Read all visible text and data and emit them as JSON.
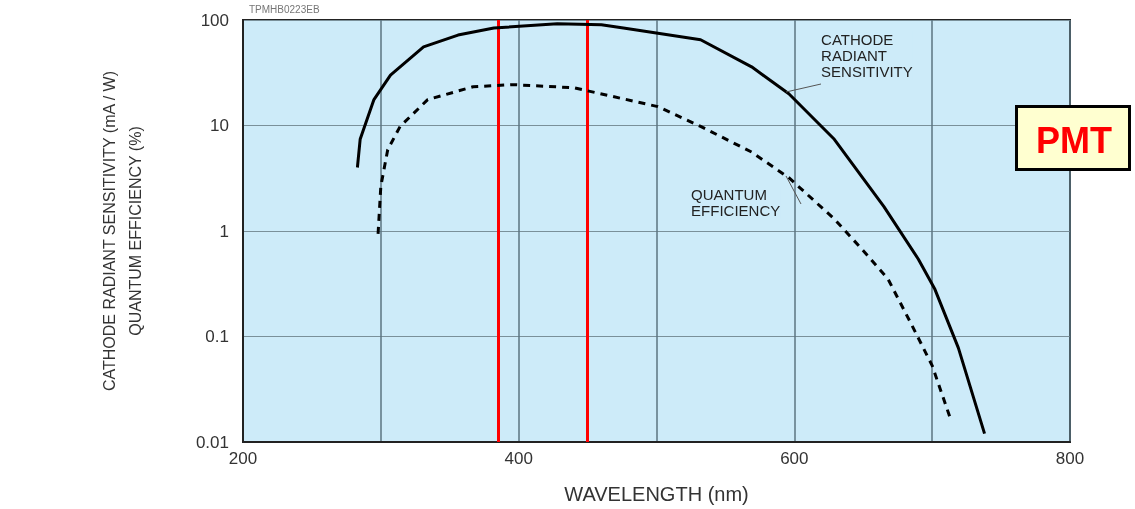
{
  "chart_data": {
    "type": "line",
    "xlabel": "WAVELENGTH (nm)",
    "ylabel": "CATHODE RADIANT SENSITIVITY (mA / W)\nQUANTUM EFFICIENCY (%)",
    "xlim": [
      200,
      800
    ],
    "xticks": [
      200,
      {
        "value": 300,
        "label": null
      },
      400,
      {
        "value": 500,
        "label": null
      },
      600,
      {
        "value": 700,
        "label": null
      },
      800
    ],
    "ylim": [
      0.01,
      100
    ],
    "yticks": [
      0.01,
      0.1,
      1,
      10,
      100
    ],
    "log": "y",
    "grid": true,
    "marker": "none",
    "series": [
      {
        "color": "#000000",
        "line_style": "solid",
        "x": [
          283,
          285,
          295,
          307,
          331,
          356,
          382,
          428,
          460,
          476,
          532,
          569,
          596,
          629,
          665,
          690,
          702,
          719,
          738
        ],
        "values": [
          4.0,
          7.4,
          17.6,
          30,
          55.6,
          72,
          84,
          92,
          90,
          84,
          65,
          36,
          20,
          7.4,
          1.7,
          0.54,
          0.28,
          0.078,
          0.012
        ]
      },
      {
        "color": "#000000",
        "line_style": "dashed",
        "x": [
          298,
          300,
          305,
          314,
          334,
          367,
          396,
          440,
          501,
          532,
          569,
          596,
          629,
          651,
          668,
          685,
          700,
          713
        ],
        "values": [
          0.94,
          2.66,
          5.9,
          9.8,
          17.6,
          23.3,
          24.4,
          22.8,
          15.1,
          9.8,
          5.6,
          3.2,
          1.3,
          0.63,
          0.35,
          0.13,
          0.053,
          0.017
        ]
      }
    ],
    "ref_lines": [
      {
        "axis": "x",
        "value": 385,
        "label": null,
        "color": "#ff0000"
      },
      {
        "axis": "x",
        "value": 450,
        "label": null,
        "color": "#ff0000"
      }
    ],
    "annotations": [
      {
        "text": "CATHODE\nRADIANT\nSENSITIVITY",
        "x": 594,
        "y": 21
      },
      {
        "text": "QUANTUM\nEFFICIENCY",
        "x": 594,
        "y": 3.3
      },
      "PMT",
      "TPMHB0223EB"
    ]
  }
}
